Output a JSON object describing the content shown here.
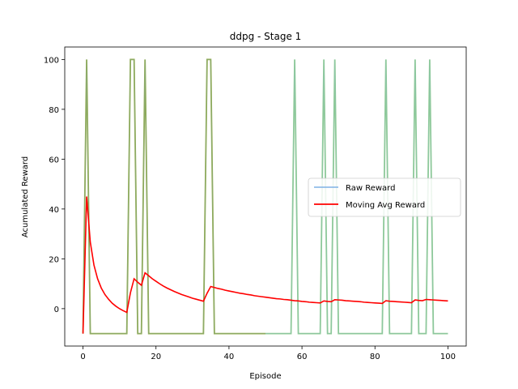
{
  "chart_data": {
    "type": "line",
    "title": "ddpg - Stage 1",
    "xlabel": "Episode",
    "ylabel": "Acumulated Reward",
    "xlim": [
      -5,
      105
    ],
    "ylim": [
      -15,
      105
    ],
    "xticks": [
      0,
      20,
      40,
      60,
      80,
      100
    ],
    "yticks": [
      0,
      20,
      40,
      60,
      80,
      100
    ],
    "legend": {
      "placement": "center-right"
    },
    "colors": {
      "raw": "#7fb2e5",
      "moving": "#ff0000",
      "overlap": "#8fa94a",
      "highlight": "#90cc90"
    },
    "series": [
      {
        "name": "Raw Reward",
        "x": [
          0,
          1,
          2,
          3,
          4,
          5,
          6,
          7,
          8,
          9,
          10,
          11,
          12,
          13,
          14,
          15,
          16,
          17,
          18,
          19,
          20,
          21,
          22,
          23,
          24,
          25,
          26,
          27,
          28,
          29,
          30,
          31,
          32,
          33,
          34,
          35,
          36,
          37,
          38,
          39,
          40,
          41,
          42,
          43,
          44,
          45,
          46,
          47,
          48,
          49,
          50,
          51,
          52,
          53,
          54,
          55,
          56,
          57,
          58,
          59,
          60,
          61,
          62,
          63,
          64,
          65,
          66,
          67,
          68,
          69,
          70,
          71,
          72,
          73,
          74,
          75,
          76,
          77,
          78,
          79,
          80,
          81,
          82,
          83,
          84,
          85,
          86,
          87,
          88,
          89,
          90,
          91,
          92,
          93,
          94,
          95,
          96,
          97,
          98,
          99,
          100
        ],
        "values": [
          -10,
          100,
          -10,
          -10,
          -10,
          -10,
          -10,
          -10,
          -10,
          -10,
          -10,
          -10,
          -10,
          100,
          100,
          -10,
          -10,
          100,
          -10,
          -10,
          -10,
          -10,
          -10,
          -10,
          -10,
          -10,
          -10,
          -10,
          -10,
          -10,
          -10,
          -10,
          -10,
          -10,
          100,
          100,
          -10,
          -10,
          -10,
          -10,
          -10,
          -10,
          -10,
          -10,
          -10,
          -10,
          -10,
          -10,
          -10,
          -10,
          -10,
          -10,
          -10,
          -10,
          -10,
          -10,
          -10,
          -10,
          100,
          -10,
          -10,
          -10,
          -10,
          -10,
          -10,
          -10,
          100,
          -10,
          -10,
          100,
          -10,
          -10,
          -10,
          -10,
          -10,
          -10,
          -10,
          -10,
          -10,
          -10,
          -10,
          -10,
          -10,
          100,
          -10,
          -10,
          -10,
          -10,
          -10,
          -10,
          -10,
          100,
          -10,
          -10,
          -10,
          100,
          -10,
          -10,
          -10,
          -10,
          -10
        ]
      },
      {
        "name": "Moving Avg Reward",
        "x": [
          0,
          1,
          2,
          3,
          4,
          5,
          6,
          7,
          8,
          9,
          10,
          11,
          12,
          13,
          14,
          15,
          16,
          17,
          18,
          19,
          20,
          21,
          22,
          23,
          24,
          25,
          26,
          27,
          28,
          29,
          30,
          31,
          32,
          33,
          34,
          35,
          36,
          37,
          38,
          39,
          40,
          41,
          42,
          43,
          44,
          45,
          46,
          47,
          48,
          49,
          50,
          51,
          52,
          53,
          54,
          55,
          56,
          57,
          58,
          59,
          60,
          61,
          62,
          63,
          64,
          65,
          66,
          67,
          68,
          69,
          70,
          71,
          72,
          73,
          74,
          75,
          76,
          77,
          78,
          79,
          80,
          81,
          82,
          83,
          84,
          85,
          86,
          87,
          88,
          89,
          90,
          91,
          92,
          93,
          94,
          95,
          96,
          97,
          98,
          99,
          100
        ],
        "values": [
          -10,
          45,
          26.7,
          17.5,
          12,
          8.3,
          5.7,
          3.8,
          2.2,
          1,
          0,
          -0.8,
          -1.5,
          6.4,
          12,
          10.6,
          9.4,
          14.4,
          13.2,
          12,
          11,
          10,
          9.1,
          8.3,
          7.6,
          6.9,
          6.3,
          5.7,
          5.2,
          4.7,
          4.2,
          3.8,
          3.4,
          3,
          6.2,
          8.9,
          8.5,
          8.1,
          7.8,
          7.4,
          7.1,
          6.8,
          6.5,
          6.2,
          6,
          5.7,
          5.5,
          5.2,
          5,
          4.8,
          4.6,
          4.4,
          4.2,
          4,
          3.9,
          3.7,
          3.6,
          3.4,
          3.2,
          3.1,
          2.9,
          2.8,
          2.6,
          2.5,
          2.4,
          2.3,
          3.1,
          2.9,
          2.8,
          3.6,
          3.5,
          3.4,
          3.2,
          3.1,
          3,
          2.9,
          2.8,
          2.6,
          2.5,
          2.4,
          2.3,
          2.2,
          2.1,
          3.2,
          3,
          2.9,
          2.8,
          2.7,
          2.6,
          2.5,
          2.4,
          3.5,
          3.3,
          3.2,
          3.7,
          3.6,
          3.5,
          3.4,
          3.3,
          3.2,
          3.1
        ]
      }
    ]
  }
}
